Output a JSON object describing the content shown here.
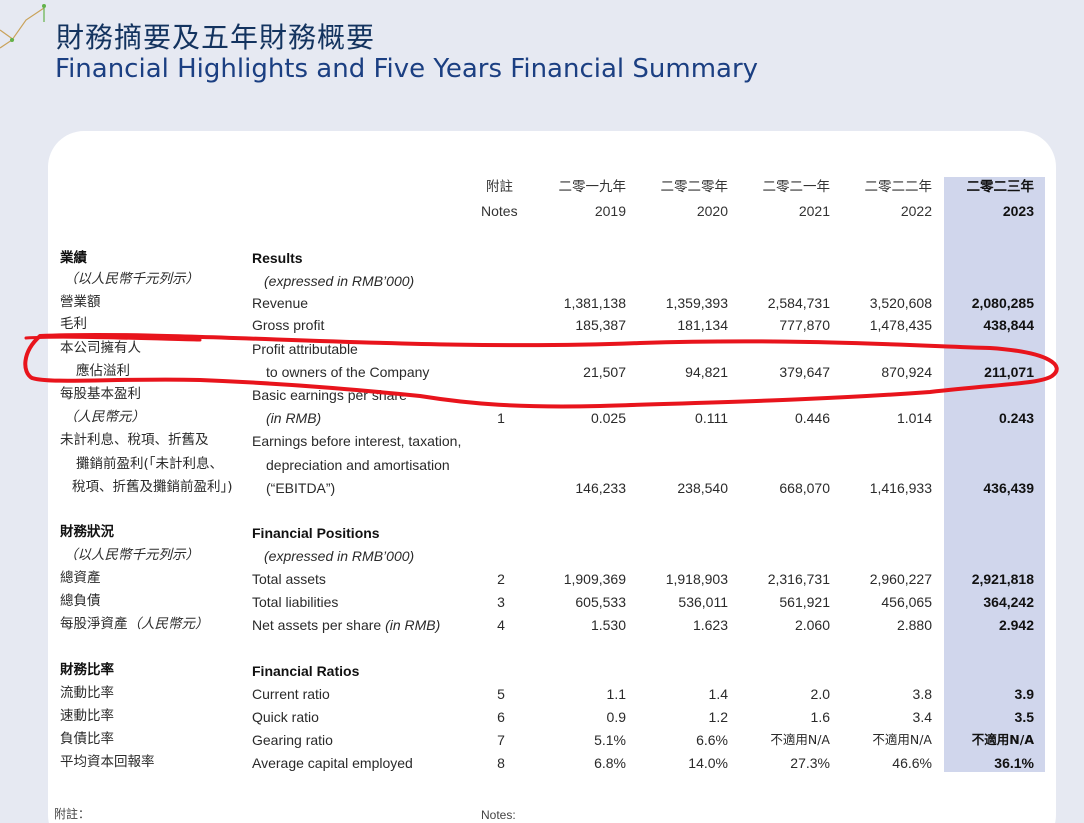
{
  "title": {
    "zh": "財務摘要及五年財務概要",
    "en": "Financial Highlights and Five Years Financial Summary"
  },
  "header": {
    "notes_zh": "附註",
    "notes_en": "Notes",
    "years": [
      {
        "zh": "二零一九年",
        "en": "2019"
      },
      {
        "zh": "二零二零年",
        "en": "2020"
      },
      {
        "zh": "二零二一年",
        "en": "2021"
      },
      {
        "zh": "二零二二年",
        "en": "2022"
      },
      {
        "zh": "二零二三年",
        "en": "2023"
      }
    ]
  },
  "sections": {
    "results": {
      "zh": "業績",
      "en": "Results",
      "unit_zh": "（以人民幣千元列示）",
      "unit_en": "(expressed in RMB’000)"
    },
    "positions": {
      "zh": "財務狀況",
      "en": "Financial Positions",
      "unit_zh": "（以人民幣千元列示）",
      "unit_en": "(expressed in RMB’000)"
    },
    "ratios": {
      "zh": "財務比率",
      "en": "Financial Ratios"
    }
  },
  "rows": {
    "revenue": {
      "zh": "營業額",
      "en": "Revenue",
      "note": "",
      "v": [
        "1,381,138",
        "1,359,393",
        "2,584,731",
        "3,520,608",
        "2,080,285"
      ]
    },
    "gross_profit": {
      "zh": "毛利",
      "en": "Gross profit",
      "note": "",
      "v": [
        "185,387",
        "181,134",
        "777,870",
        "1,478,435",
        "438,844"
      ]
    },
    "profit_owners": {
      "zh1": "本公司擁有人",
      "zh2": "應佔溢利",
      "en1": "Profit attributable",
      "en2": "to owners of the Company",
      "note": "",
      "v": [
        "21,507",
        "94,821",
        "379,647",
        "870,924",
        "211,071"
      ]
    },
    "eps": {
      "zh1": "每股基本盈利",
      "zh2": "（人民幣元）",
      "en1": "Basic earnings per share",
      "en2": "(in RMB)",
      "note": "1",
      "v": [
        "0.025",
        "0.111",
        "0.446",
        "1.014",
        "0.243"
      ]
    },
    "ebitda": {
      "zh1": "未計利息、稅項、折舊及",
      "zh2": "攤銷前盈利(「未計利息、",
      "zh3": "稅項、折舊及攤銷前盈利」)",
      "en1": "Earnings before interest, taxation,",
      "en2": "depreciation and amortisation",
      "en3": "(“EBITDA”)",
      "note": "",
      "v": [
        "146,233",
        "238,540",
        "668,070",
        "1,416,933",
        "436,439"
      ]
    },
    "total_assets": {
      "zh": "總資產",
      "en": "Total assets",
      "note": "2",
      "v": [
        "1,909,369",
        "1,918,903",
        "2,316,731",
        "2,960,227",
        "2,921,818"
      ]
    },
    "total_liabilities": {
      "zh": "總負債",
      "en": "Total liabilities",
      "note": "3",
      "v": [
        "605,533",
        "536,011",
        "561,921",
        "456,065",
        "364,242"
      ]
    },
    "nav": {
      "zh": "每股淨資產",
      "zh_unit": "（人民幣元）",
      "en": "Net assets per share",
      "en_unit": "(in RMB)",
      "note": "4",
      "v": [
        "1.530",
        "1.623",
        "2.060",
        "2.880",
        "2.942"
      ]
    },
    "current_ratio": {
      "zh": "流動比率",
      "en": "Current ratio",
      "note": "5",
      "v": [
        "1.1",
        "1.4",
        "2.0",
        "3.8",
        "3.9"
      ]
    },
    "quick_ratio": {
      "zh": "速動比率",
      "en": "Quick ratio",
      "note": "6",
      "v": [
        "0.9",
        "1.2",
        "1.6",
        "3.4",
        "3.5"
      ]
    },
    "gearing_ratio": {
      "zh": "負債比率",
      "en": "Gearing ratio",
      "note": "7",
      "v": [
        "5.1%",
        "6.6%",
        "不適用N/A",
        "不適用N/A",
        "不適用N/A"
      ]
    },
    "avg_capital": {
      "zh": "平均資本回報率",
      "en": "Average capital employed",
      "note": "8",
      "v": [
        "6.8%",
        "14.0%",
        "27.3%",
        "46.6%",
        "36.1%"
      ]
    }
  },
  "footer": {
    "notes_zh": "附註：",
    "notes_en": "Notes:"
  },
  "colors": {
    "background": "#e6e9f2",
    "highlight_column": "#d0d6ec",
    "title": "#13335f",
    "annotation": "#e8141c"
  }
}
